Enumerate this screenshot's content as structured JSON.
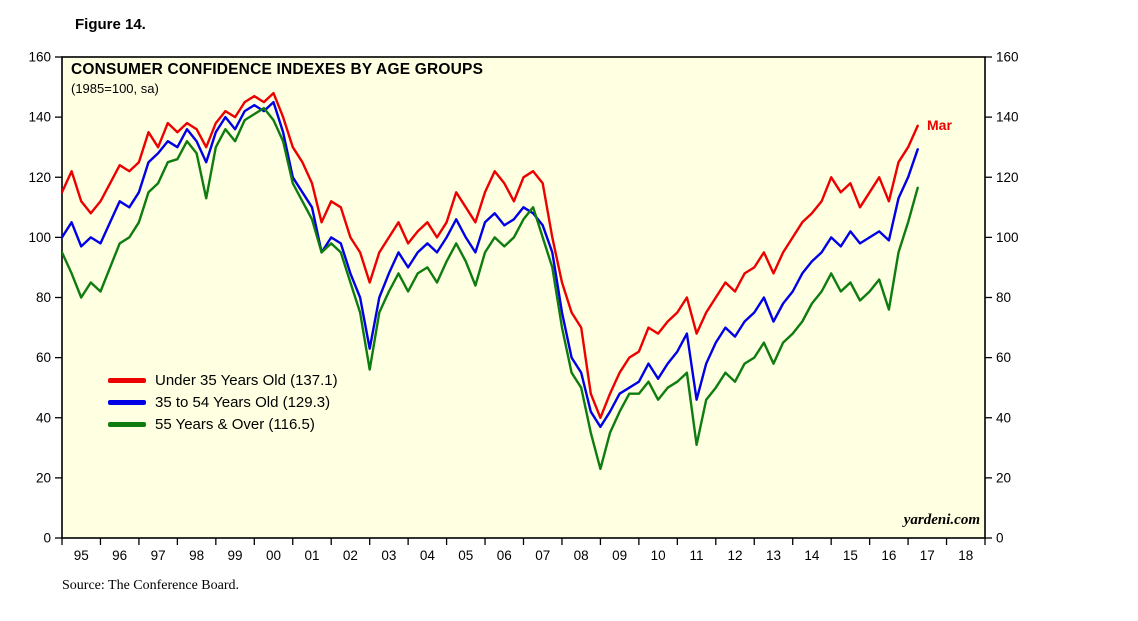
{
  "figure_label": "Figure 14.",
  "source": "Source: The Conference Board.",
  "chart_data": {
    "type": "line",
    "title": "CONSUMER CONFIDENCE INDEXES BY AGE GROUPS",
    "subtitle": "(1985=100, sa)",
    "watermark": "yardeni.com",
    "plot_bg": "#FFFFE2",
    "border_color": "#000000",
    "ylim": [
      0,
      160
    ],
    "y_ticks": [
      0,
      20,
      40,
      60,
      80,
      100,
      120,
      140,
      160
    ],
    "x_axis_range": [
      1995,
      2019
    ],
    "x_tick_labels": [
      "95",
      "96",
      "97",
      "98",
      "99",
      "00",
      "01",
      "02",
      "03",
      "04",
      "05",
      "06",
      "07",
      "08",
      "09",
      "10",
      "11",
      "12",
      "13",
      "14",
      "15",
      "16",
      "17",
      "18"
    ],
    "x_start": 1995.0,
    "x_step": 0.25,
    "annotation": {
      "text": "Mar",
      "color": "#EC0000"
    },
    "legend_position": "inside-left-middle",
    "grid": false,
    "series": [
      {
        "name": "Under 35 Years Old (137.1)",
        "color": "#EC0000",
        "values": [
          115,
          122,
          112,
          108,
          112,
          118,
          124,
          122,
          125,
          135,
          130,
          138,
          135,
          138,
          136,
          130,
          138,
          142,
          140,
          145,
          147,
          145,
          148,
          140,
          130,
          125,
          118,
          105,
          112,
          110,
          100,
          95,
          85,
          95,
          100,
          105,
          98,
          102,
          105,
          100,
          105,
          115,
          110,
          105,
          115,
          122,
          118,
          112,
          120,
          122,
          118,
          100,
          85,
          75,
          70,
          48,
          40,
          48,
          55,
          60,
          62,
          70,
          68,
          72,
          75,
          80,
          68,
          75,
          80,
          85,
          82,
          88,
          90,
          95,
          88,
          95,
          100,
          105,
          108,
          112,
          120,
          115,
          118,
          110,
          115,
          120,
          112,
          125,
          130,
          137.1
        ]
      },
      {
        "name": "35 to 54 Years Old (129.3)",
        "color": "#0000E6",
        "values": [
          100,
          105,
          97,
          100,
          98,
          105,
          112,
          110,
          115,
          125,
          128,
          132,
          130,
          136,
          132,
          125,
          135,
          140,
          136,
          142,
          144,
          142,
          145,
          135,
          120,
          115,
          110,
          95,
          100,
          98,
          88,
          80,
          63,
          80,
          88,
          95,
          90,
          95,
          98,
          95,
          100,
          106,
          100,
          95,
          105,
          108,
          104,
          106,
          110,
          108,
          104,
          95,
          75,
          60,
          55,
          42,
          37,
          42,
          48,
          50,
          52,
          58,
          53,
          58,
          62,
          68,
          46,
          58,
          65,
          70,
          67,
          72,
          75,
          80,
          72,
          78,
          82,
          88,
          92,
          95,
          100,
          97,
          102,
          98,
          100,
          102,
          99,
          113,
          120,
          129.3
        ]
      },
      {
        "name": "55 Years & Over (116.5)",
        "color": "#0E7C0E",
        "values": [
          95,
          88,
          80,
          85,
          82,
          90,
          98,
          100,
          105,
          115,
          118,
          125,
          126,
          132,
          128,
          113,
          130,
          136,
          132,
          139,
          141,
          143,
          139,
          132,
          118,
          112,
          106,
          95,
          98,
          95,
          85,
          75,
          56,
          75,
          82,
          88,
          82,
          88,
          90,
          85,
          92,
          98,
          92,
          84,
          95,
          100,
          97,
          100,
          106,
          110,
          100,
          90,
          70,
          55,
          50,
          35,
          23,
          35,
          42,
          48,
          48,
          52,
          46,
          50,
          52,
          55,
          31,
          46,
          50,
          55,
          52,
          58,
          60,
          65,
          58,
          65,
          68,
          72,
          78,
          82,
          88,
          82,
          85,
          79,
          82,
          86,
          76,
          95,
          105,
          116.5
        ]
      }
    ]
  }
}
